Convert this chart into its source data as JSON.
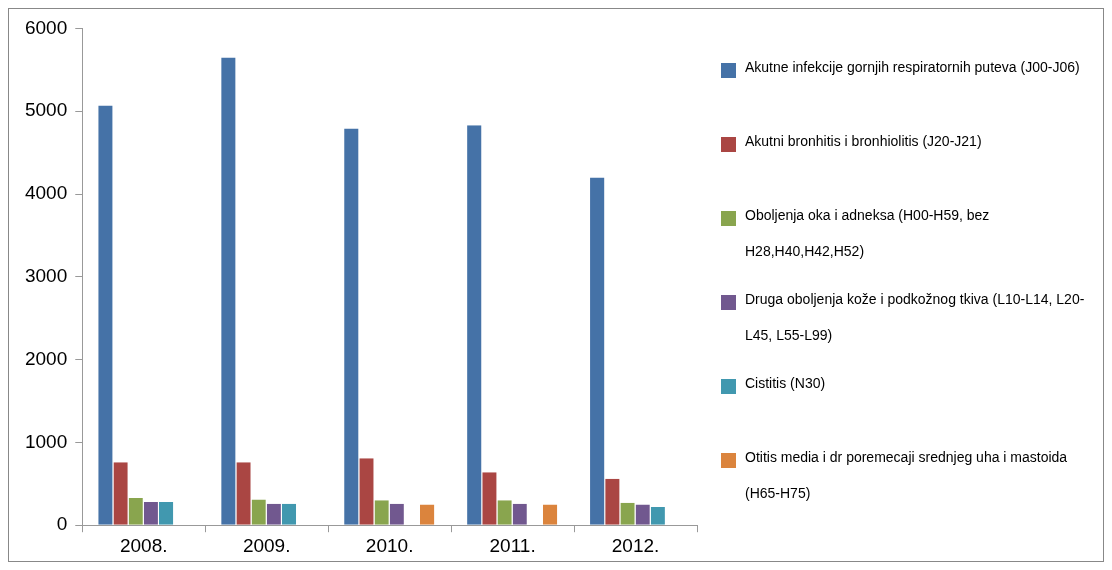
{
  "chart_data": {
    "type": "bar",
    "categories": [
      "2008.",
      "2009.",
      "2010.",
      "2011.",
      "2012."
    ],
    "series": [
      {
        "name": "Akutne infekcije gornjih respiratornih puteva (J00-J06)",
        "color": "#4572a7",
        "values": [
          5070,
          5650,
          4790,
          4830,
          4200
        ]
      },
      {
        "name": "Akutni bronhitis i bronhiolitis (J20-J21)",
        "color": "#aa4643",
        "values": [
          760,
          760,
          810,
          640,
          560
        ]
      },
      {
        "name": "Oboljenja oka i adneksa (H00-H59,  bez H28,H40,H42,H52)",
        "color": "#89a54e",
        "values": [
          330,
          310,
          300,
          300,
          270
        ]
      },
      {
        "name": "Druga  oboljenja kože i podkožnog tkiva (L10-L14,  L20-L45,  L55-L99)",
        "color": "#71588f",
        "values": [
          280,
          260,
          260,
          260,
          250
        ]
      },
      {
        "name": "Cistitis (N30)",
        "color": "#4198af",
        "values": [
          280,
          260,
          null,
          null,
          220
        ]
      },
      {
        "name": "Otitis media i dr poremecaji srednjeg uha i mastoida (H65-H75)",
        "color": "#db843d",
        "values": [
          null,
          null,
          250,
          250,
          null
        ]
      }
    ],
    "ylim": [
      0,
      6000
    ],
    "yticks": [
      0,
      1000,
      2000,
      3000,
      4000,
      5000,
      6000
    ],
    "grid": false,
    "legend": "right"
  }
}
